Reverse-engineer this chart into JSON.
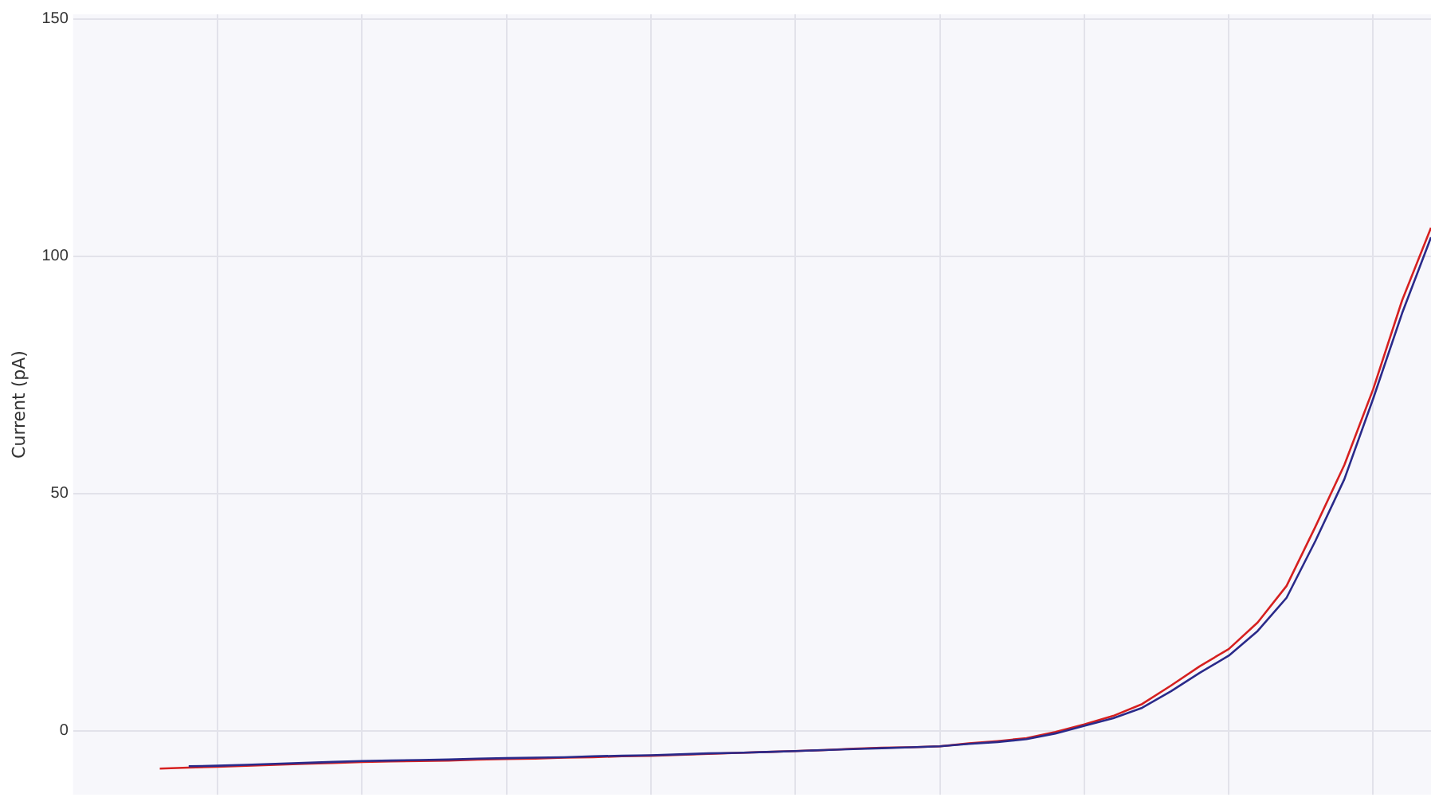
{
  "chart_data": {
    "type": "line",
    "ylabel": "Current (pA)",
    "categories": [
      null,
      null,
      null,
      null,
      null,
      null,
      null,
      null,
      null,
      null,
      null,
      null,
      null,
      null,
      null,
      null,
      null,
      null,
      null,
      null,
      null,
      null,
      null,
      null,
      null,
      null,
      null,
      null,
      null,
      null,
      null,
      null,
      null,
      null,
      null,
      null,
      null,
      null,
      null,
      null,
      null,
      null,
      null,
      null,
      null,
      null,
      null,
      null
    ],
    "ylim": [
      -13.5,
      151
    ],
    "yticks": [
      0,
      50,
      100,
      150
    ],
    "grid": true,
    "tick_labels": "y",
    "marker": "none",
    "line_style": "solid",
    "series": [
      {
        "color": "#2a2a8a",
        "values": [
          null,
          null,
          null,
          null,
          -7.5,
          -7.4,
          -7.2,
          -7.0,
          -6.8,
          -6.6,
          -6.4,
          -6.3,
          -6.2,
          -6.1,
          -5.9,
          -5.8,
          -5.7,
          -5.6,
          -5.4,
          -5.3,
          -5.2,
          -5.0,
          -4.8,
          -4.7,
          -4.5,
          -4.3,
          -4.1,
          -3.9,
          -3.7,
          -3.5,
          -3.3,
          -2.8,
          -2.4,
          -1.8,
          -0.6,
          1.0,
          2.6,
          4.8,
          8.3,
          12.2,
          15.8,
          21,
          28,
          40,
          53,
          70,
          88,
          104
        ]
      },
      {
        "color": "#d62020",
        "values": [
          null,
          null,
          null,
          -8,
          -7.8,
          -7.6,
          -7.4,
          -7.2,
          -7.0,
          -6.8,
          -6.6,
          -6.5,
          -6.4,
          -6.3,
          -6.1,
          -6.0,
          -5.9,
          -5.7,
          -5.6,
          -5.4,
          -5.3,
          -5.1,
          -4.9,
          -4.7,
          -4.5,
          -4.3,
          -4.1,
          -3.8,
          -3.6,
          -3.5,
          -3.3,
          -2.7,
          -2.2,
          -1.6,
          -0.3,
          1.3,
          3.1,
          5.6,
          9.5,
          13.6,
          17.2,
          22.8,
          30.5,
          43,
          56,
          72,
          90.7,
          106
        ]
      }
    ]
  }
}
